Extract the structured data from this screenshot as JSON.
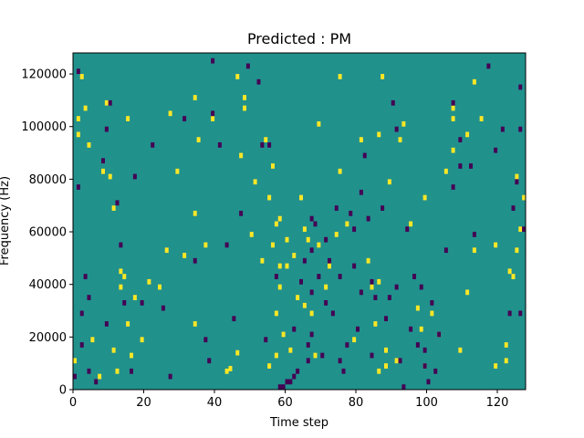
{
  "chart_data": {
    "type": "heatmap",
    "title": "Predicted : PM",
    "xlabel": "Time step",
    "ylabel": "Frequency (Hz)",
    "xlim": [
      0,
      128
    ],
    "ylim": [
      0,
      128000
    ],
    "x_ticks": [
      0,
      20,
      40,
      60,
      80,
      100,
      120
    ],
    "y_ticks": [
      0,
      20000,
      40000,
      60000,
      80000,
      100000,
      120000
    ],
    "x_tick_labels": [
      "0",
      "20",
      "40",
      "60",
      "80",
      "100",
      "120"
    ],
    "y_tick_labels": [
      "0",
      "20000",
      "40000",
      "60000",
      "80000",
      "100000",
      "120000"
    ],
    "colormap": "viridis",
    "grid": false,
    "colors": {
      "background": "#21918c",
      "low": "#440154",
      "high": "#fde725"
    },
    "value_levels": {
      "low": 0,
      "background": 1,
      "high": 2
    },
    "bins": {
      "time_bins": 128,
      "freq_bins": 128,
      "freq_bin_hz": 1000
    },
    "cells": {
      "high": [
        [
          1,
          12
        ],
        [
          2,
          98
        ],
        [
          2,
          104
        ],
        [
          4,
          108
        ],
        [
          3,
          120
        ],
        [
          5,
          94
        ],
        [
          6,
          20
        ],
        [
          8,
          6
        ],
        [
          9,
          84
        ],
        [
          11,
          82
        ],
        [
          10,
          110
        ],
        [
          12,
          16
        ],
        [
          12,
          70
        ],
        [
          13,
          8
        ],
        [
          14,
          46
        ],
        [
          14,
          40
        ],
        [
          15,
          44
        ],
        [
          16,
          26
        ],
        [
          17,
          14
        ],
        [
          18,
          36
        ],
        [
          16,
          104
        ],
        [
          20,
          20
        ],
        [
          22,
          42
        ],
        [
          25,
          40
        ],
        [
          27,
          54
        ],
        [
          28,
          106
        ],
        [
          30,
          84
        ],
        [
          32,
          52
        ],
        [
          35,
          26
        ],
        [
          35,
          68
        ],
        [
          36,
          96
        ],
        [
          38,
          56
        ],
        [
          35,
          112
        ],
        [
          40,
          104
        ],
        [
          44,
          8
        ],
        [
          45,
          9
        ],
        [
          47,
          15
        ],
        [
          48,
          90
        ],
        [
          47,
          120
        ],
        [
          49,
          112
        ],
        [
          49,
          108
        ],
        [
          51,
          60
        ],
        [
          52,
          80
        ],
        [
          54,
          50
        ],
        [
          55,
          96
        ],
        [
          56,
          10
        ],
        [
          56,
          74
        ],
        [
          57,
          86
        ],
        [
          58,
          30
        ],
        [
          59,
          40
        ],
        [
          57,
          56
        ],
        [
          58,
          64
        ],
        [
          58,
          14
        ],
        [
          59,
          66
        ],
        [
          59,
          48
        ],
        [
          60,
          22
        ],
        [
          61,
          48
        ],
        [
          61,
          58
        ],
        [
          62,
          16
        ],
        [
          63,
          52
        ],
        [
          64,
          36
        ],
        [
          65,
          74
        ],
        [
          66,
          62
        ],
        [
          66,
          33
        ],
        [
          67,
          58
        ],
        [
          68,
          30
        ],
        [
          69,
          14
        ],
        [
          70,
          102
        ],
        [
          70,
          56
        ],
        [
          72,
          40
        ],
        [
          73,
          48
        ],
        [
          75,
          60
        ],
        [
          76,
          84
        ],
        [
          76,
          120
        ],
        [
          78,
          64
        ],
        [
          80,
          20
        ],
        [
          82,
          96
        ],
        [
          84,
          50
        ],
        [
          85,
          40
        ],
        [
          86,
          26
        ],
        [
          87,
          8
        ],
        [
          87,
          42
        ],
        [
          87,
          98
        ],
        [
          89,
          10
        ],
        [
          89,
          16
        ],
        [
          88,
          120
        ],
        [
          90,
          80
        ],
        [
          92,
          12
        ],
        [
          93,
          96
        ],
        [
          94,
          102
        ],
        [
          96,
          64
        ],
        [
          98,
          32
        ],
        [
          99,
          24
        ],
        [
          100,
          10
        ],
        [
          100,
          74
        ],
        [
          102,
          30
        ],
        [
          104,
          22
        ],
        [
          106,
          84
        ],
        [
          108,
          104
        ],
        [
          108,
          108
        ],
        [
          108,
          92
        ],
        [
          110,
          16
        ],
        [
          112,
          38
        ],
        [
          112,
          98
        ],
        [
          114,
          54
        ],
        [
          114,
          118
        ],
        [
          116,
          104
        ],
        [
          120,
          10
        ],
        [
          120,
          56
        ],
        [
          123,
          18
        ],
        [
          123,
          12
        ],
        [
          124,
          46
        ],
        [
          125,
          44
        ],
        [
          126,
          54
        ],
        [
          126,
          82
        ],
        [
          127,
          62
        ],
        [
          128,
          74
        ]
      ],
      "low": [
        [
          1,
          6
        ],
        [
          2,
          78
        ],
        [
          2,
          122
        ],
        [
          3,
          18
        ],
        [
          3,
          30
        ],
        [
          4,
          44
        ],
        [
          5,
          8
        ],
        [
          5,
          36
        ],
        [
          7,
          4
        ],
        [
          9,
          88
        ],
        [
          10,
          26
        ],
        [
          10,
          100
        ],
        [
          11,
          110
        ],
        [
          13,
          72
        ],
        [
          14,
          56
        ],
        [
          15,
          34
        ],
        [
          17,
          8
        ],
        [
          18,
          82
        ],
        [
          20,
          34
        ],
        [
          23,
          94
        ],
        [
          26,
          32
        ],
        [
          28,
          6
        ],
        [
          32,
          104
        ],
        [
          35,
          50
        ],
        [
          38,
          20
        ],
        [
          39,
          12
        ],
        [
          40,
          106
        ],
        [
          40,
          126
        ],
        [
          42,
          94
        ],
        [
          44,
          56
        ],
        [
          46,
          28
        ],
        [
          48,
          68
        ],
        [
          50,
          124
        ],
        [
          53,
          118
        ],
        [
          54,
          94
        ],
        [
          55,
          20
        ],
        [
          56,
          94
        ],
        [
          58,
          44
        ],
        [
          59,
          2
        ],
        [
          60,
          2
        ],
        [
          61,
          4
        ],
        [
          62,
          4
        ],
        [
          63,
          6
        ],
        [
          63,
          24
        ],
        [
          64,
          8
        ],
        [
          65,
          42
        ],
        [
          66,
          50
        ],
        [
          67,
          12
        ],
        [
          67,
          18
        ],
        [
          68,
          54
        ],
        [
          68,
          22
        ],
        [
          68,
          38
        ],
        [
          68,
          66
        ],
        [
          69,
          64
        ],
        [
          70,
          44
        ],
        [
          71,
          14
        ],
        [
          72,
          34
        ],
        [
          72,
          58
        ],
        [
          73,
          50
        ],
        [
          74,
          30
        ],
        [
          75,
          70
        ],
        [
          76,
          12
        ],
        [
          76,
          44
        ],
        [
          77,
          8
        ],
        [
          78,
          18
        ],
        [
          79,
          68
        ],
        [
          80,
          48
        ],
        [
          80,
          62
        ],
        [
          81,
          24
        ],
        [
          82,
          38
        ],
        [
          82,
          76
        ],
        [
          83,
          90
        ],
        [
          84,
          66
        ],
        [
          85,
          42
        ],
        [
          85,
          14
        ],
        [
          86,
          36
        ],
        [
          88,
          70
        ],
        [
          89,
          28
        ],
        [
          90,
          36
        ],
        [
          91,
          110
        ],
        [
          92,
          100
        ],
        [
          92,
          40
        ],
        [
          93,
          12
        ],
        [
          94,
          2
        ],
        [
          95,
          62
        ],
        [
          96,
          24
        ],
        [
          97,
          44
        ],
        [
          98,
          18
        ],
        [
          99,
          40
        ],
        [
          100,
          16
        ],
        [
          100,
          10
        ],
        [
          101,
          4
        ],
        [
          102,
          34
        ],
        [
          103,
          8
        ],
        [
          104,
          22
        ],
        [
          106,
          54
        ],
        [
          108,
          78
        ],
        [
          108,
          110
        ],
        [
          110,
          86
        ],
        [
          110,
          96
        ],
        [
          113,
          86
        ],
        [
          114,
          60
        ],
        [
          118,
          124
        ],
        [
          120,
          92
        ],
        [
          122,
          100
        ],
        [
          124,
          30
        ],
        [
          125,
          70
        ],
        [
          126,
          80
        ],
        [
          127,
          30
        ],
        [
          127,
          116
        ],
        [
          127,
          100
        ],
        [
          128,
          62
        ]
      ]
    }
  }
}
